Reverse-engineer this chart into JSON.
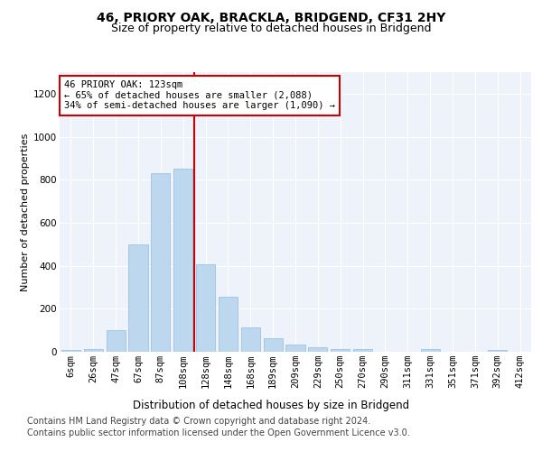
{
  "title1": "46, PRIORY OAK, BRACKLA, BRIDGEND, CF31 2HY",
  "title2": "Size of property relative to detached houses in Bridgend",
  "xlabel": "Distribution of detached houses by size in Bridgend",
  "ylabel": "Number of detached properties",
  "categories": [
    "6sqm",
    "26sqm",
    "47sqm",
    "67sqm",
    "87sqm",
    "108sqm",
    "128sqm",
    "148sqm",
    "168sqm",
    "189sqm",
    "209sqm",
    "229sqm",
    "250sqm",
    "270sqm",
    "290sqm",
    "311sqm",
    "331sqm",
    "351sqm",
    "371sqm",
    "392sqm",
    "412sqm"
  ],
  "values": [
    8,
    12,
    100,
    500,
    830,
    850,
    405,
    255,
    115,
    65,
    32,
    22,
    13,
    13,
    0,
    0,
    12,
    0,
    0,
    8,
    0
  ],
  "bar_color": "#BDD7EE",
  "bar_edge_color": "#9DC3E6",
  "vline_index": 6,
  "annotation_text": "46 PRIORY OAK: 123sqm\n← 65% of detached houses are smaller (2,088)\n34% of semi-detached houses are larger (1,090) →",
  "annotation_box_color": "#ffffff",
  "annotation_box_edge_color": "#cc0000",
  "vline_color": "#cc0000",
  "footer1": "Contains HM Land Registry data © Crown copyright and database right 2024.",
  "footer2": "Contains public sector information licensed under the Open Government Licence v3.0.",
  "ylim": [
    0,
    1300
  ],
  "yticks": [
    0,
    200,
    400,
    600,
    800,
    1000,
    1200
  ],
  "bg_color": "#EEF2FB",
  "title1_fontsize": 10,
  "title2_fontsize": 9,
  "xlabel_fontsize": 8.5,
  "ylabel_fontsize": 8,
  "tick_fontsize": 7.5,
  "footer_fontsize": 7
}
